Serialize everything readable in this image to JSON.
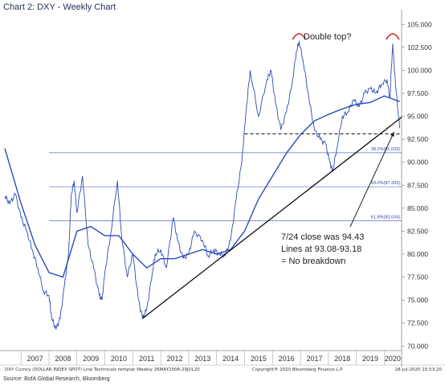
{
  "title": "Chart 2: DXY - Weekly Chart",
  "footer": {
    "left": "DXY Curncy (DOLLAR INDEX SPOT) Line Technicals templat  Weekly 26MAY2006-29JUL20",
    "mid": "Copyright® 2020 Bloomberg Finance L.P.",
    "right": "28-Jul-2020 15:53:20"
  },
  "source": "Source: BofA Global Research, Bloomberg",
  "colors": {
    "price": "#2b4bb8",
    "ma": "#2b4bb8",
    "fib": "#5a6fc0",
    "trend": "#000000",
    "arc": "#cc2222",
    "axis_text": "#333333"
  },
  "chart_data": {
    "type": "line",
    "xlim": [
      2006.42,
      2020.62
    ],
    "ylim": [
      69.5,
      105.9
    ],
    "y_ticks": [
      "70.000",
      "72.500",
      "75.000",
      "77.500",
      "80.000",
      "82.500",
      "85.000",
      "87.500",
      "90.000",
      "92.500",
      "95.000",
      "97.500",
      "100.000",
      "102.500",
      "105.000"
    ],
    "y_tick_values": [
      70,
      72.5,
      75,
      77.5,
      80,
      82.5,
      85,
      87.5,
      90,
      92.5,
      95,
      97.5,
      100,
      102.5,
      105
    ],
    "x_labels": [
      "2007",
      "2008",
      "2009",
      "2010",
      "2011",
      "2012",
      "2013",
      "2014",
      "2015",
      "2016",
      "2017",
      "2018",
      "2019",
      "2020"
    ],
    "x_label_positions": [
      2007.5,
      2008.5,
      2009.5,
      2010.5,
      2011.5,
      2012.5,
      2013.5,
      2014.5,
      2015.5,
      2016.5,
      2017.5,
      2018.5,
      2019.5,
      2020.3
    ],
    "series": [
      {
        "role": "price",
        "x": [
          2006.42,
          2006.6,
          2006.8,
          2007.0,
          2007.2,
          2007.4,
          2007.6,
          2007.8,
          2008.0,
          2008.1,
          2008.25,
          2008.4,
          2008.55,
          2008.7,
          2008.8,
          2008.9,
          2009.0,
          2009.2,
          2009.4,
          2009.6,
          2009.8,
          2009.9,
          2010.0,
          2010.2,
          2010.45,
          2010.6,
          2010.8,
          2011.0,
          2011.2,
          2011.35,
          2011.5,
          2011.7,
          2011.8,
          2012.0,
          2012.2,
          2012.45,
          2012.6,
          2012.8,
          2013.0,
          2013.2,
          2013.5,
          2013.7,
          2013.9,
          2014.1,
          2014.3,
          2014.5,
          2014.7,
          2014.9,
          2015.05,
          2015.2,
          2015.5,
          2015.8,
          2015.95,
          2016.1,
          2016.3,
          2016.5,
          2016.7,
          2016.85,
          2016.95,
          2017.1,
          2017.3,
          2017.5,
          2017.7,
          2017.9,
          2018.05,
          2018.15,
          2018.3,
          2018.5,
          2018.7,
          2018.9,
          2019.1,
          2019.3,
          2019.5,
          2019.7,
          2019.9,
          2020.1,
          2020.2,
          2020.3,
          2020.4,
          2020.55
        ],
        "y": [
          86.3,
          85.5,
          86.5,
          84.0,
          82.5,
          80.5,
          78.5,
          76.0,
          75.5,
          73.0,
          71.8,
          73.0,
          76.5,
          80.0,
          86.5,
          88.0,
          84.5,
          88.5,
          81.0,
          78.5,
          75.5,
          75.0,
          78.0,
          82.0,
          88.0,
          82.0,
          77.5,
          80.0,
          75.0,
          73.0,
          74.0,
          78.0,
          80.0,
          80.5,
          78.5,
          84.0,
          81.5,
          79.5,
          80.0,
          82.5,
          81.5,
          79.8,
          80.5,
          80.0,
          79.8,
          81.5,
          86.0,
          90.0,
          95.5,
          100.0,
          95.0,
          99.0,
          100.0,
          96.5,
          93.5,
          95.5,
          98.5,
          102.0,
          103.2,
          101.0,
          97.0,
          93.5,
          92.5,
          92.0,
          90.0,
          89.0,
          91.5,
          95.0,
          95.5,
          96.8,
          96.0,
          97.5,
          98.0,
          97.5,
          98.5,
          99.0,
          97.0,
          102.9,
          98.5,
          93.7
        ]
      },
      {
        "role": "moving-average",
        "x": [
          2006.42,
          2007.0,
          2007.5,
          2008.0,
          2008.5,
          2009.0,
          2009.5,
          2010.0,
          2010.5,
          2011.0,
          2011.5,
          2012.0,
          2012.5,
          2013.0,
          2013.5,
          2014.0,
          2014.5,
          2015.0,
          2015.5,
          2016.0,
          2016.5,
          2017.0,
          2017.5,
          2018.0,
          2018.5,
          2019.0,
          2019.5,
          2020.0,
          2020.55
        ],
        "y": [
          91.5,
          85.5,
          81.0,
          78.0,
          77.5,
          82.5,
          83.0,
          82.0,
          82.0,
          80.0,
          78.5,
          79.5,
          79.5,
          80.0,
          80.5,
          80.0,
          80.5,
          82.5,
          86.0,
          88.5,
          91.0,
          93.0,
          94.5,
          95.2,
          95.8,
          96.3,
          96.5,
          97.2,
          96.6
        ]
      }
    ],
    "trendline": {
      "x": [
        2011.35,
        2020.62
      ],
      "y": [
        73.0,
        94.9
      ]
    },
    "dashed_line": {
      "x": [
        2015.0,
        2020.55
      ],
      "y": [
        93.08,
        93.08
      ]
    },
    "fib_levels": [
      {
        "label": "38.2%(91.033)",
        "y": 91.033
      },
      {
        "label": "50.0%(87.333)",
        "y": 87.333
      },
      {
        "label": "61.8%(83.634)",
        "y": 83.634
      }
    ],
    "double_top_peaks": [
      {
        "x": 2016.95,
        "y": 103.8
      },
      {
        "x": 2020.3,
        "y": 103.8
      }
    ]
  },
  "annotations": {
    "double_top": "Double top?",
    "note_line1": "7/24 close was 94.43",
    "note_line2": "Lines at 93.08-93.18",
    "note_line3": "= No breakdown"
  }
}
